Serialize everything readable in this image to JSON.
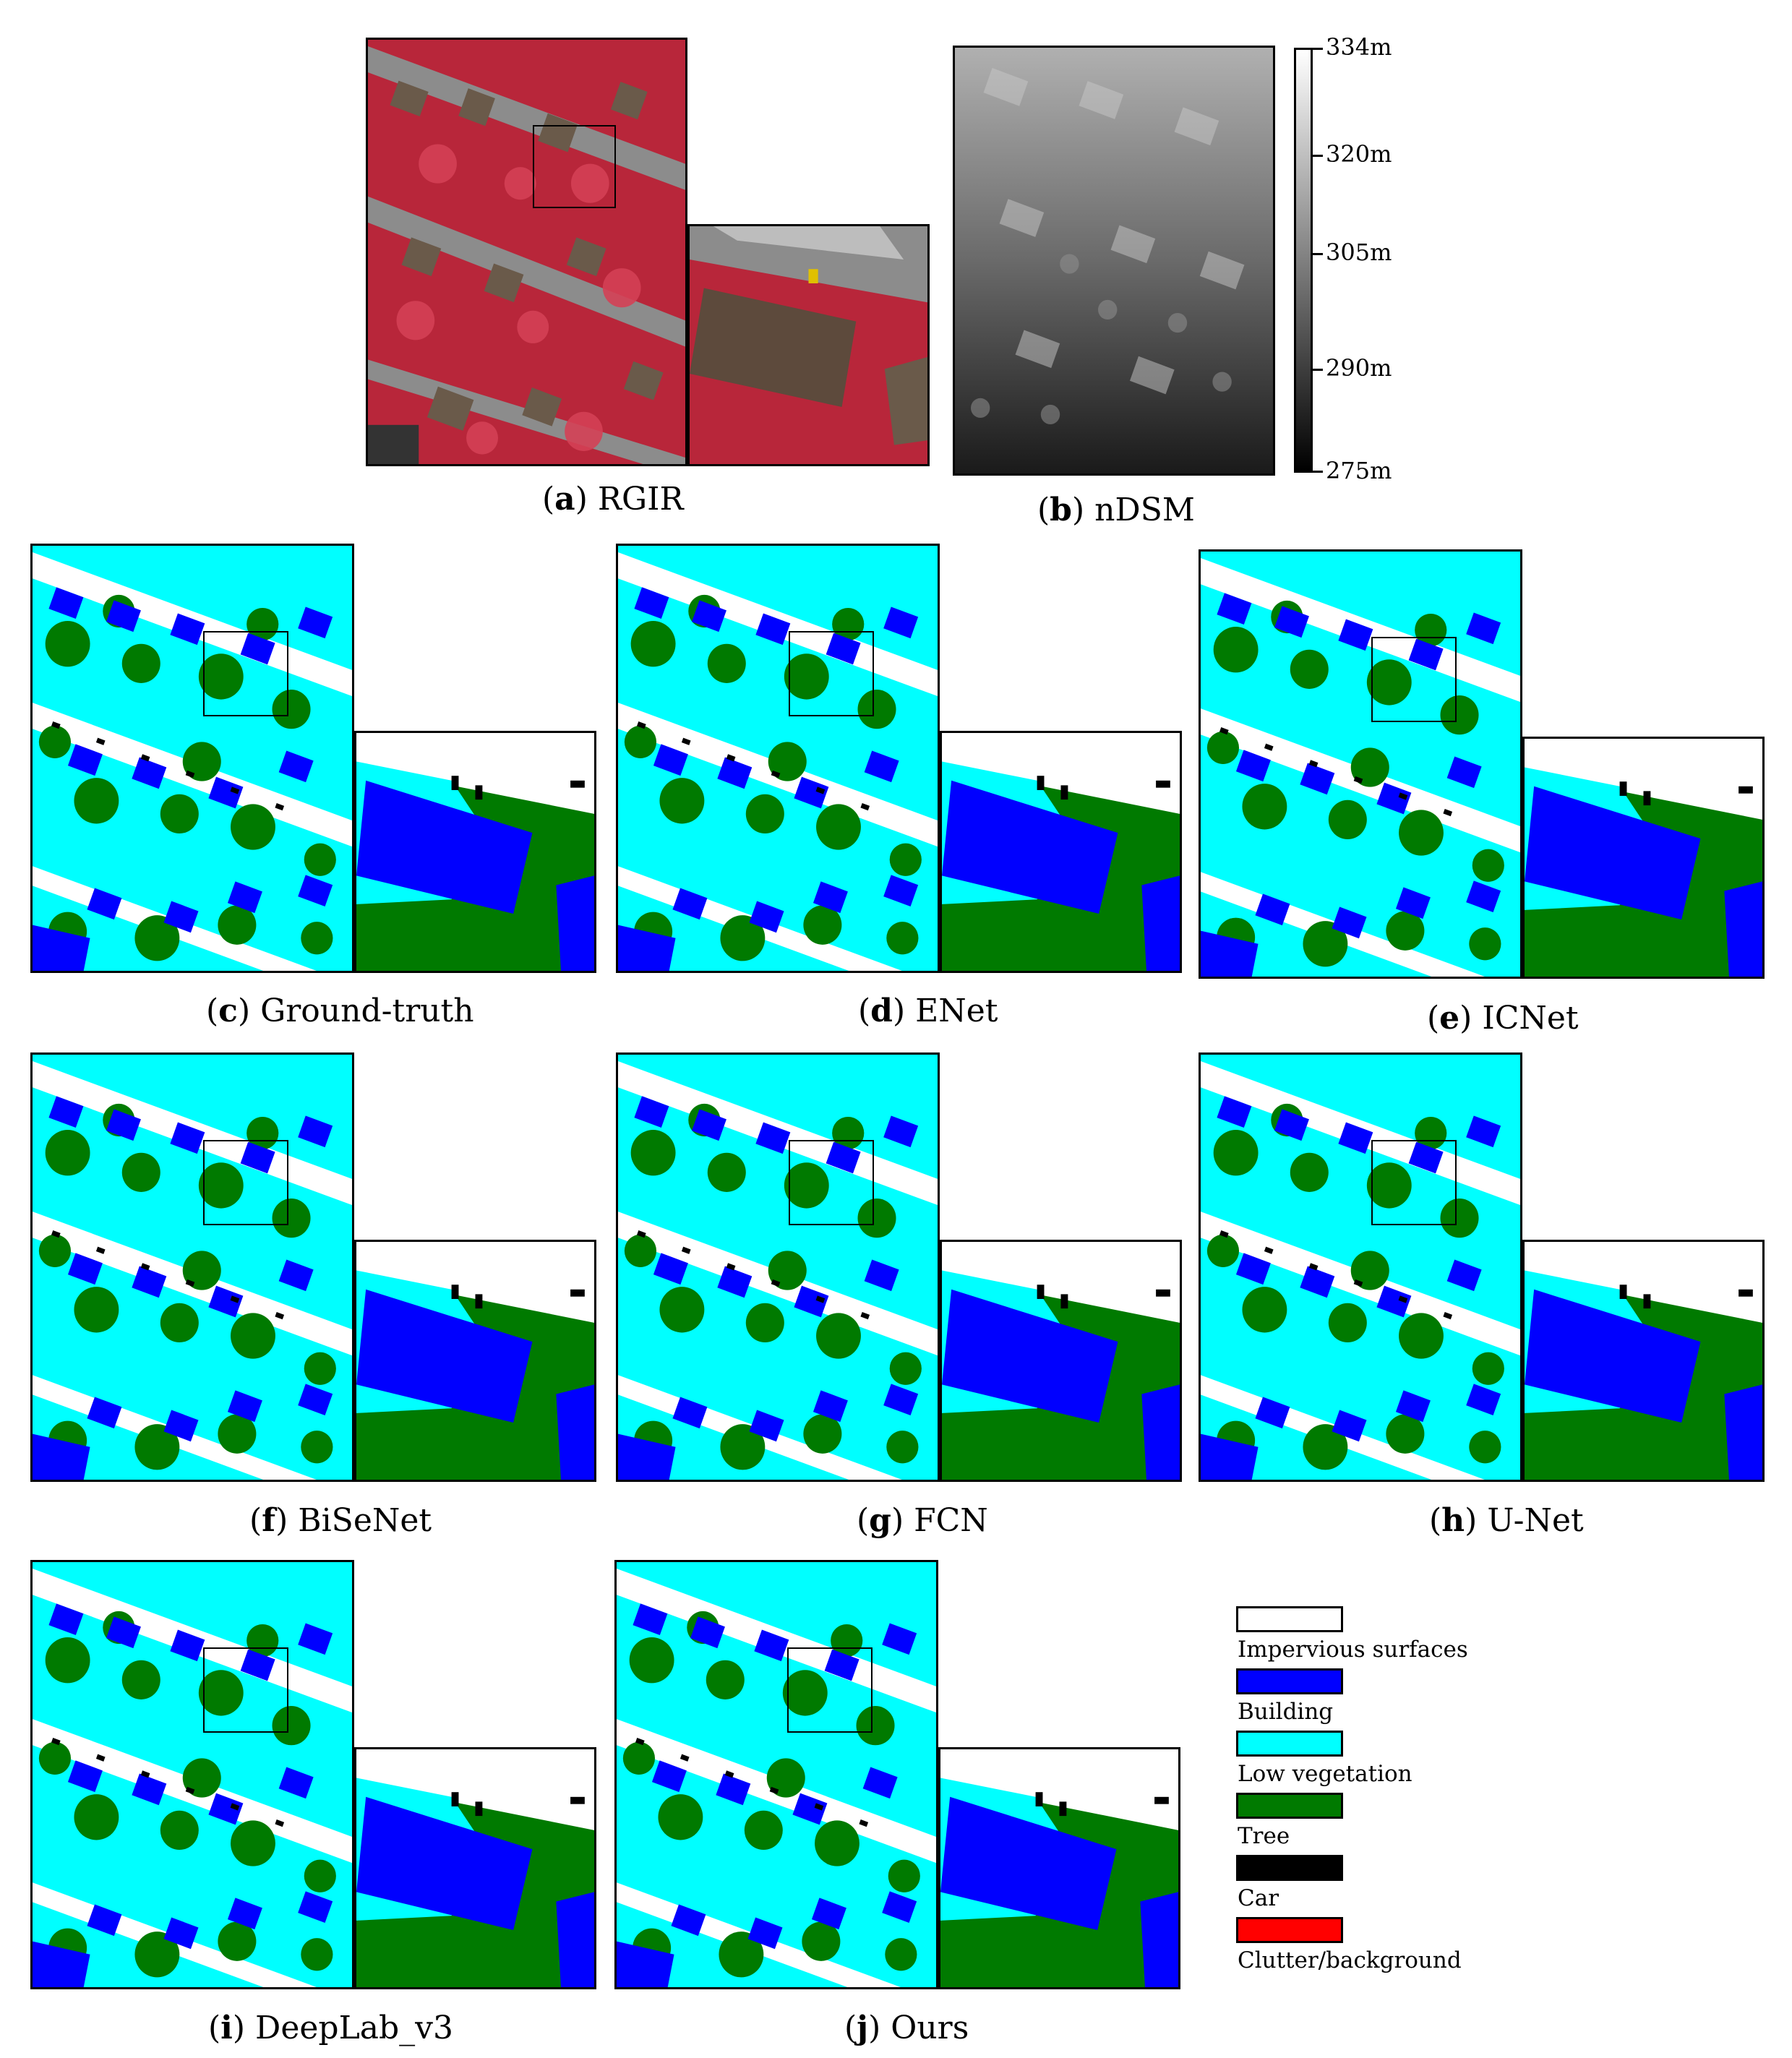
{
  "panels": {
    "a": {
      "letter": "a",
      "name": "RGIR"
    },
    "b": {
      "letter": "b",
      "name": "nDSM"
    },
    "c": {
      "letter": "c",
      "name": "Ground-truth"
    },
    "d": {
      "letter": "d",
      "name": "ENet"
    },
    "e": {
      "letter": "e",
      "name": "ICNet"
    },
    "f": {
      "letter": "f",
      "name": "BiSeNet"
    },
    "g": {
      "letter": "g",
      "name": "FCN"
    },
    "h": {
      "letter": "h",
      "name": "U-Net"
    },
    "i": {
      "letter": "i",
      "name": "DeepLab_v3"
    },
    "j": {
      "letter": "j",
      "name": "Ours"
    }
  },
  "colorbar": {
    "labels": [
      "334m",
      "320m",
      "305m",
      "290m",
      "275m"
    ]
  },
  "legend": {
    "items": [
      {
        "label": "Impervious surfaces",
        "color": "#ffffff"
      },
      {
        "label": "Building",
        "color": "#0000ff"
      },
      {
        "label": "Low vegetation",
        "color": "#00ffff"
      },
      {
        "label": "Tree",
        "color": "#007a00"
      },
      {
        "label": "Car",
        "color": "#000000"
      },
      {
        "label": "Clutter/background",
        "color": "#ff0000"
      }
    ]
  },
  "colors": {
    "impervious": "#ffffff",
    "building": "#0000ff",
    "low_vegetation": "#00ffff",
    "tree": "#007a00",
    "car": "#000000",
    "clutter": "#ff0000",
    "rgir_veg": "#e0304a",
    "rgir_road": "#8a8a8a"
  }
}
